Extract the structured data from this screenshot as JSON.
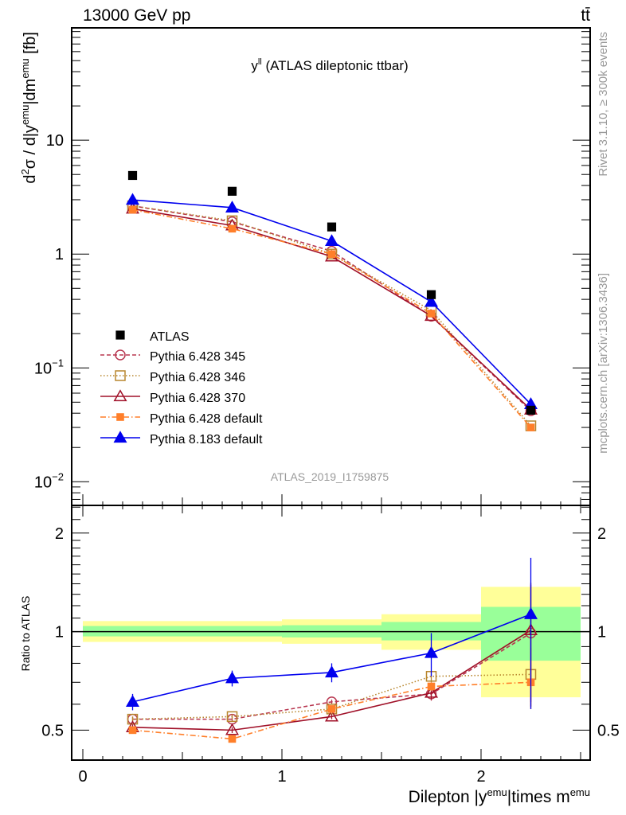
{
  "chart_data": {
    "type": "line",
    "header_left": "13000 GeV pp",
    "header_right": "tt̄",
    "title": {
      "main": "y",
      "sup": "ll",
      "rest": " (ATLAS dileptonic ttbar)"
    },
    "ylabel_parts": [
      {
        "t": "d",
        "sup": false
      },
      {
        "t": "2",
        "sup": true
      },
      {
        "t": "σ / d|y",
        "sup": false
      },
      {
        "t": "emu",
        "sup": true
      },
      {
        "t": "|dm",
        "sup": false
      },
      {
        "t": "emu",
        "sup": true
      },
      {
        "t": " [fb]",
        "sup": false
      }
    ],
    "xlabel_parts": [
      {
        "t": "Dilepton |y",
        "sup": false
      },
      {
        "t": "emu",
        "sup": true
      },
      {
        "t": "|times m",
        "sup": false
      },
      {
        "t": "emu",
        "sup": true
      }
    ],
    "ratio_ylabel": "Ratio to ATLAS",
    "side_label_top": "Rivet 3.1.10, ≥ 300k events",
    "side_label_bottom": "mcplots.cern.ch [arXiv:1306.3436]",
    "analysis_id": "ATLAS_2019_I1759875",
    "xlim": [
      -0.056,
      2.548
    ],
    "ylim": [
      0.0062,
      97
    ],
    "yscale": "log",
    "ratio_ylim": [
      0.405,
      2.43
    ],
    "ratio_yscale": "log",
    "x_ticks": [
      {
        "v": 0,
        "label": "0"
      },
      {
        "v": 1,
        "label": "1"
      },
      {
        "v": 2,
        "label": "2"
      }
    ],
    "y_ticks": [
      {
        "v": 10,
        "base": "10",
        "exp": ""
      },
      {
        "v": 1,
        "base": "1",
        "exp": ""
      },
      {
        "v": 0.1,
        "base": "10",
        "exp": "−1"
      },
      {
        "v": 0.01,
        "base": "10",
        "exp": "−2"
      }
    ],
    "ratio_ticks": [
      {
        "v": 0.5,
        "label": "0.5"
      },
      {
        "v": 1,
        "label": "1"
      },
      {
        "v": 2,
        "label": "2"
      }
    ],
    "x": [
      0.25,
      0.75,
      1.25,
      1.75,
      2.25
    ],
    "legend_position": "lower-left",
    "data": {
      "name": "ATLAS",
      "color": "#000000",
      "values": [
        4.9,
        3.56,
        1.73,
        0.44,
        0.0425
      ]
    },
    "bands": [
      {
        "x0": 0.0,
        "x1": 1.0,
        "yellow": [
          0.93,
          1.077
        ],
        "green": [
          0.967,
          1.04
        ]
      },
      {
        "x0": 1.0,
        "x1": 1.5,
        "yellow": [
          0.918,
          1.09
        ],
        "green": [
          0.96,
          1.046
        ]
      },
      {
        "x0": 1.5,
        "x1": 2.0,
        "yellow": [
          0.88,
          1.13
        ],
        "green": [
          0.94,
          1.07
        ]
      },
      {
        "x0": 2.0,
        "x1": 2.5,
        "yellow": [
          0.63,
          1.37
        ],
        "green": [
          0.815,
          1.19
        ]
      }
    ],
    "band_colors": {
      "yellow": "#ffff99",
      "green": "#99ff99"
    },
    "series": [
      {
        "name": "Pythia 6.428 345",
        "color": "#b8364f",
        "dash": "5,3",
        "marker": "circle-open",
        "values": [
          2.65,
          1.92,
          1.06,
          0.284,
          0.042
        ],
        "ratio": [
          0.54,
          0.54,
          0.61,
          0.645,
          0.99
        ],
        "ratio_err": [
          0.01,
          0.01,
          0.01,
          0.03,
          0.4
        ]
      },
      {
        "name": "Pythia 6.428 346",
        "color": "#b8862e",
        "dash": "1.5,2.5",
        "marker": "square-open",
        "values": [
          2.65,
          1.96,
          1.0,
          0.32,
          0.031
        ],
        "ratio": [
          0.54,
          0.55,
          0.58,
          0.73,
          0.74
        ],
        "ratio_err": [
          0.01,
          0.01,
          0.01,
          0.03,
          0.15
        ]
      },
      {
        "name": "Pythia 6.428 370",
        "color": "#a01028",
        "dash": "",
        "marker": "triangle-open",
        "values": [
          2.5,
          1.78,
          0.95,
          0.286,
          0.043
        ],
        "ratio": [
          0.51,
          0.5,
          0.55,
          0.65,
          1.01
        ],
        "ratio_err": [
          0.01,
          0.01,
          0.01,
          0.03,
          0.4
        ]
      },
      {
        "name": "Pythia 6.428 default",
        "color": "#ff7f2a",
        "dash": "7,3,1.5,3",
        "marker": "square-filled",
        "values": [
          2.45,
          1.67,
          1.0,
          0.3,
          0.03
        ],
        "ratio": [
          0.5,
          0.47,
          0.58,
          0.68,
          0.7
        ],
        "ratio_err": [
          0.01,
          0.01,
          0.01,
          0.02,
          0.12
        ]
      },
      {
        "name": "Pythia 8.183 default",
        "color": "#0000ee",
        "dash": "",
        "marker": "triangle-filled",
        "values": [
          2.99,
          2.56,
          1.3,
          0.38,
          0.048
        ],
        "ratio": [
          0.61,
          0.72,
          0.75,
          0.86,
          1.13
        ],
        "ratio_err": [
          0.035,
          0.04,
          0.05,
          0.13,
          0.55
        ]
      }
    ]
  }
}
